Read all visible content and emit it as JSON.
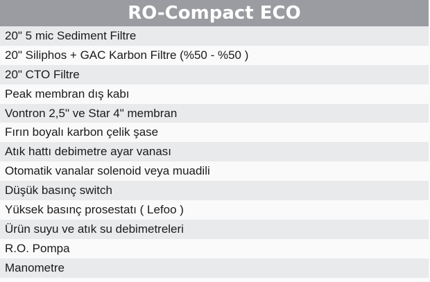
{
  "title": "RO-Compact ECO",
  "colors": {
    "header_bg": "#9a9ca1",
    "row_alt": "#e9eaec",
    "row": "#fafafa"
  },
  "items": [
    "20\" 5 mic Sediment Filtre",
    "20\" Siliphos + GAC Karbon Filtre (%50 - %50 )",
    "20\" CTO Filtre",
    "Peak membran dış kabı",
    "Vontron 2,5\" ve Star 4\" membran",
    "Fırın boyalı karbon çelik şase",
    "Atık hattı debimetre ayar vanası",
    "Otomatik vanalar solenoid veya muadili",
    "Düşük basınç switch",
    "Yüksek basınç prosestatı ( Lefoo )",
    "Ürün suyu ve atık su debimetreleri",
    "R.O. Pompa",
    "Manometre"
  ]
}
